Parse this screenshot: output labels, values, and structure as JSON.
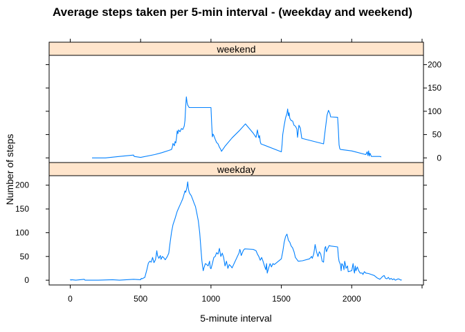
{
  "chart_data": {
    "type": "line",
    "title": "Average steps taken per 5-min interval - (weekday and weekend)",
    "xlabel": "5-minute interval",
    "ylabel": "Number of steps",
    "xlim": [
      -150,
      2510
    ],
    "ylim": [
      -10,
      220
    ],
    "x_ticks": [
      0,
      500,
      1000,
      1500,
      2000
    ],
    "y_ticks": [
      0,
      50,
      100,
      150,
      200
    ],
    "line_color": "#0080ff",
    "strip_color": "#ffe5cc",
    "panels": [
      {
        "name": "weekend",
        "points": [
          [
            155,
            0
          ],
          [
            250,
            0
          ],
          [
            350,
            3
          ],
          [
            450,
            6
          ],
          [
            455,
            3
          ],
          [
            500,
            1
          ],
          [
            600,
            7
          ],
          [
            650,
            11
          ],
          [
            700,
            16
          ],
          [
            720,
            18
          ],
          [
            725,
            23
          ],
          [
            730,
            31
          ],
          [
            740,
            26
          ],
          [
            745,
            35
          ],
          [
            750,
            32
          ],
          [
            755,
            43
          ],
          [
            760,
            58
          ],
          [
            765,
            52
          ],
          [
            770,
            60
          ],
          [
            780,
            56
          ],
          [
            790,
            63
          ],
          [
            800,
            61
          ],
          [
            810,
            68
          ],
          [
            815,
            80
          ],
          [
            820,
            109
          ],
          [
            825,
            131
          ],
          [
            830,
            119
          ],
          [
            835,
            113
          ],
          [
            845,
            108
          ],
          [
            1000,
            108
          ],
          [
            1005,
            73
          ],
          [
            1010,
            45
          ],
          [
            1015,
            51
          ],
          [
            1020,
            48
          ],
          [
            1030,
            40
          ],
          [
            1040,
            33
          ],
          [
            1050,
            30
          ],
          [
            1060,
            23
          ],
          [
            1070,
            18
          ],
          [
            1075,
            14
          ],
          [
            1100,
            25
          ],
          [
            1150,
            43
          ],
          [
            1200,
            58
          ],
          [
            1245,
            73
          ],
          [
            1300,
            53
          ],
          [
            1320,
            44
          ],
          [
            1330,
            60
          ],
          [
            1335,
            51
          ],
          [
            1340,
            43
          ],
          [
            1345,
            48
          ],
          [
            1350,
            35
          ],
          [
            1355,
            30
          ],
          [
            1500,
            13
          ],
          [
            1505,
            28
          ],
          [
            1510,
            50
          ],
          [
            1520,
            70
          ],
          [
            1530,
            86
          ],
          [
            1540,
            95
          ],
          [
            1545,
            105
          ],
          [
            1550,
            90
          ],
          [
            1555,
            97
          ],
          [
            1560,
            85
          ],
          [
            1570,
            80
          ],
          [
            1580,
            79
          ],
          [
            1590,
            70
          ],
          [
            1600,
            68
          ],
          [
            1610,
            62
          ],
          [
            1615,
            44
          ],
          [
            1625,
            70
          ],
          [
            1635,
            64
          ],
          [
            1645,
            42
          ],
          [
            1800,
            30
          ],
          [
            1810,
            55
          ],
          [
            1820,
            80
          ],
          [
            1825,
            92
          ],
          [
            1835,
            102
          ],
          [
            1845,
            95
          ],
          [
            1850,
            88
          ],
          [
            1900,
            87
          ],
          [
            1905,
            60
          ],
          [
            1910,
            28
          ],
          [
            1915,
            20
          ],
          [
            1920,
            18
          ],
          [
            2000,
            15
          ],
          [
            2100,
            7
          ],
          [
            2110,
            13
          ],
          [
            2115,
            5
          ],
          [
            2120,
            15
          ],
          [
            2125,
            4
          ],
          [
            2130,
            10
          ],
          [
            2140,
            3
          ],
          [
            2150,
            3
          ],
          [
            2200,
            3
          ],
          [
            2210,
            2
          ]
        ]
      },
      {
        "name": "weekday",
        "points": [
          [
            0,
            2
          ],
          [
            5,
            0
          ],
          [
            10,
            1
          ],
          [
            40,
            0
          ],
          [
            100,
            2
          ],
          [
            105,
            0
          ],
          [
            200,
            0
          ],
          [
            300,
            1
          ],
          [
            350,
            0
          ],
          [
            400,
            1
          ],
          [
            450,
            2
          ],
          [
            500,
            1
          ],
          [
            505,
            4
          ],
          [
            510,
            3
          ],
          [
            530,
            6
          ],
          [
            545,
            23
          ],
          [
            555,
            36
          ],
          [
            565,
            40
          ],
          [
            575,
            38
          ],
          [
            585,
            48
          ],
          [
            595,
            37
          ],
          [
            605,
            43
          ],
          [
            610,
            51
          ],
          [
            615,
            62
          ],
          [
            620,
            52
          ],
          [
            630,
            46
          ],
          [
            640,
            52
          ],
          [
            645,
            44
          ],
          [
            655,
            50
          ],
          [
            665,
            47
          ],
          [
            675,
            43
          ],
          [
            690,
            50
          ],
          [
            700,
            57
          ],
          [
            710,
            80
          ],
          [
            720,
            101
          ],
          [
            730,
            117
          ],
          [
            745,
            130
          ],
          [
            760,
            145
          ],
          [
            775,
            155
          ],
          [
            790,
            165
          ],
          [
            800,
            172
          ],
          [
            810,
            182
          ],
          [
            815,
            188
          ],
          [
            820,
            185
          ],
          [
            825,
            190
          ],
          [
            830,
            197
          ],
          [
            835,
            207
          ],
          [
            840,
            192
          ],
          [
            845,
            185
          ],
          [
            850,
            182
          ],
          [
            855,
            180
          ],
          [
            860,
            178
          ],
          [
            870,
            170
          ],
          [
            880,
            162
          ],
          [
            890,
            155
          ],
          [
            900,
            140
          ],
          [
            910,
            125
          ],
          [
            920,
            100
          ],
          [
            930,
            60
          ],
          [
            935,
            42
          ],
          [
            940,
            30
          ],
          [
            945,
            20
          ],
          [
            950,
            26
          ],
          [
            960,
            35
          ],
          [
            970,
            33
          ],
          [
            980,
            30
          ],
          [
            990,
            40
          ],
          [
            995,
            26
          ],
          [
            1000,
            24
          ],
          [
            1010,
            35
          ],
          [
            1020,
            48
          ],
          [
            1030,
            50
          ],
          [
            1040,
            58
          ],
          [
            1050,
            55
          ],
          [
            1060,
            67
          ],
          [
            1070,
            50
          ],
          [
            1080,
            57
          ],
          [
            1090,
            48
          ],
          [
            1100,
            30
          ],
          [
            1110,
            40
          ],
          [
            1120,
            25
          ],
          [
            1130,
            33
          ],
          [
            1140,
            30
          ],
          [
            1150,
            26
          ],
          [
            1200,
            58
          ],
          [
            1205,
            65
          ],
          [
            1210,
            60
          ],
          [
            1215,
            52
          ],
          [
            1230,
            63
          ],
          [
            1240,
            66
          ],
          [
            1300,
            65
          ],
          [
            1320,
            62
          ],
          [
            1330,
            55
          ],
          [
            1340,
            50
          ],
          [
            1350,
            42
          ],
          [
            1360,
            48
          ],
          [
            1370,
            40
          ],
          [
            1380,
            30
          ],
          [
            1390,
            22
          ],
          [
            1395,
            35
          ],
          [
            1400,
            15
          ],
          [
            1410,
            26
          ],
          [
            1420,
            35
          ],
          [
            1430,
            28
          ],
          [
            1440,
            35
          ],
          [
            1450,
            33
          ],
          [
            1500,
            45
          ],
          [
            1510,
            60
          ],
          [
            1520,
            80
          ],
          [
            1530,
            92
          ],
          [
            1540,
            97
          ],
          [
            1550,
            84
          ],
          [
            1560,
            80
          ],
          [
            1570,
            72
          ],
          [
            1580,
            68
          ],
          [
            1590,
            60
          ],
          [
            1600,
            48
          ],
          [
            1620,
            40
          ],
          [
            1650,
            41
          ],
          [
            1700,
            45
          ],
          [
            1715,
            50
          ],
          [
            1720,
            46
          ],
          [
            1730,
            55
          ],
          [
            1740,
            75
          ],
          [
            1750,
            60
          ],
          [
            1760,
            50
          ],
          [
            1770,
            60
          ],
          [
            1780,
            55
          ],
          [
            1790,
            40
          ],
          [
            1800,
            38
          ],
          [
            1805,
            58
          ],
          [
            1810,
            68
          ],
          [
            1815,
            71
          ],
          [
            1820,
            60
          ],
          [
            1830,
            67
          ],
          [
            1840,
            73
          ],
          [
            1850,
            72
          ],
          [
            1900,
            70
          ],
          [
            1905,
            50
          ],
          [
            1910,
            40
          ],
          [
            1920,
            33
          ],
          [
            1925,
            20
          ],
          [
            1930,
            35
          ],
          [
            1940,
            30
          ],
          [
            1945,
            22
          ],
          [
            1950,
            40
          ],
          [
            1955,
            34
          ],
          [
            1960,
            25
          ],
          [
            1970,
            30
          ],
          [
            1975,
            18
          ],
          [
            2000,
            20
          ],
          [
            2010,
            35
          ],
          [
            2015,
            22
          ],
          [
            2020,
            15
          ],
          [
            2025,
            30
          ],
          [
            2030,
            20
          ],
          [
            2040,
            28
          ],
          [
            2050,
            20
          ],
          [
            2060,
            15
          ],
          [
            2075,
            15
          ],
          [
            2080,
            12
          ],
          [
            2090,
            18
          ],
          [
            2100,
            15
          ],
          [
            2120,
            14
          ],
          [
            2140,
            12
          ],
          [
            2160,
            10
          ],
          [
            2180,
            5
          ],
          [
            2200,
            2
          ],
          [
            2210,
            5
          ],
          [
            2220,
            8
          ],
          [
            2230,
            10
          ],
          [
            2240,
            4
          ],
          [
            2250,
            3
          ],
          [
            2260,
            6
          ],
          [
            2270,
            2
          ],
          [
            2280,
            4
          ],
          [
            2290,
            1
          ],
          [
            2300,
            3
          ],
          [
            2310,
            0
          ],
          [
            2330,
            3
          ],
          [
            2340,
            2
          ],
          [
            2350,
            0
          ],
          [
            2355,
            1
          ]
        ]
      }
    ]
  }
}
